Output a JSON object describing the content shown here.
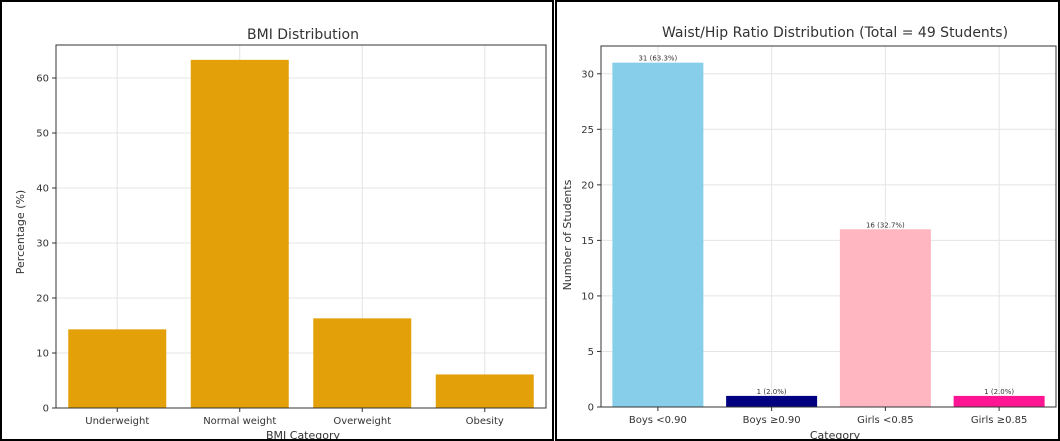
{
  "chart_data": [
    {
      "type": "bar",
      "title": "BMI Distribution",
      "xlabel": "BMI Category",
      "ylabel": "Percentage (%)",
      "categories": [
        "Underweight",
        "Normal weight",
        "Overweight",
        "Obesity"
      ],
      "values": [
        14.3,
        63.3,
        16.3,
        6.1
      ],
      "ylim": [
        0,
        66
      ],
      "yticks": [
        0,
        10,
        20,
        30,
        40,
        50,
        60
      ],
      "colors": [
        "#e3a008",
        "#e3a008",
        "#e3a008",
        "#e3a008"
      ],
      "grid": true,
      "data_labels": []
    },
    {
      "type": "bar",
      "title": "Waist/Hip Ratio Distribution (Total = 49 Students)",
      "xlabel": "Category",
      "ylabel": "Number of Students",
      "categories": [
        "Boys <0.90",
        "Boys ≥0.90",
        "Girls <0.85",
        "Girls ≥0.85"
      ],
      "values": [
        31,
        1,
        16,
        1
      ],
      "ylim": [
        0,
        32.5
      ],
      "yticks": [
        0,
        5,
        10,
        15,
        20,
        25,
        30
      ],
      "colors": [
        "#87ceeb",
        "#000080",
        "#ffb6c1",
        "#ff1493"
      ],
      "grid": true,
      "data_labels": [
        "31 (63.3%)",
        "1 (2.0%)",
        "16 (32.7%)",
        "1 (2.0%)"
      ]
    }
  ]
}
